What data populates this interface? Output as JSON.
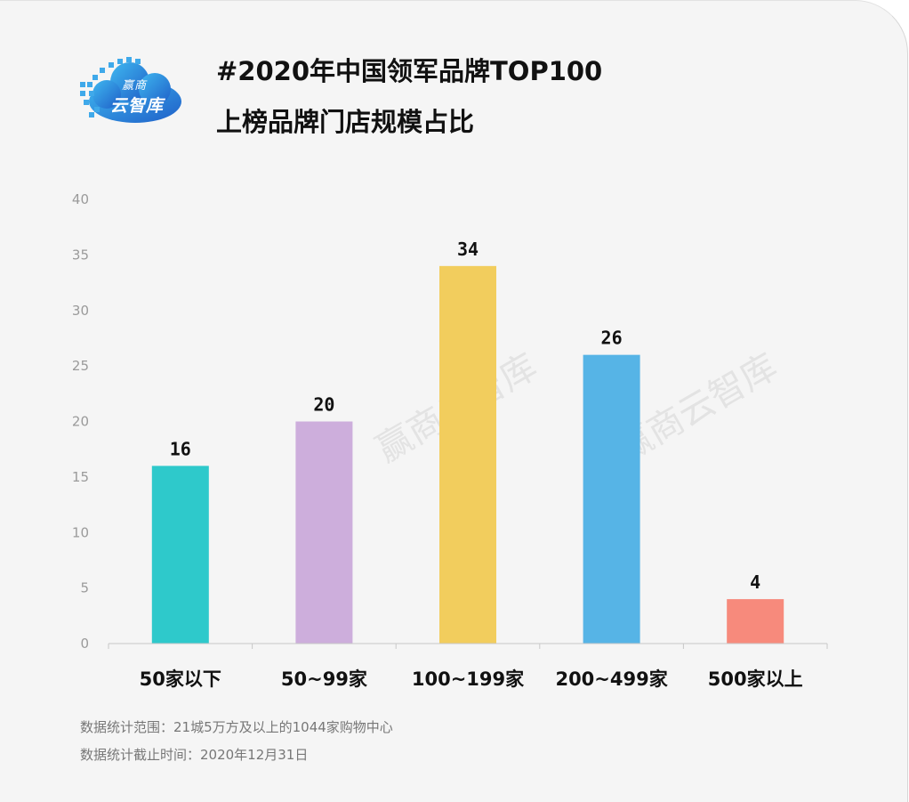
{
  "brand": {
    "logo_text_top": "赢商",
    "logo_text_main": "云智库",
    "watermark": "赢商云智库"
  },
  "title": {
    "line1": "#2020年中国领军品牌TOP100",
    "line2": "上榜品牌门店规模占比"
  },
  "notes": {
    "scope": "数据统计范围：21城5万方及以上的1044家购物中心",
    "cutoff": "数据统计截止时间：2020年12月31日"
  },
  "chart_data": {
    "type": "bar",
    "title": "#2020年中国领军品牌TOP100 上榜品牌门店规模占比",
    "xlabel": "",
    "ylabel": "",
    "categories": [
      "50家以下",
      "50~99家",
      "100~199家",
      "200~499家",
      "500家以上"
    ],
    "values": [
      16,
      20,
      34,
      26,
      4
    ],
    "colors": [
      "#2ec9cb",
      "#cdaedc",
      "#f2cd5d",
      "#56b4e6",
      "#f78a7c"
    ],
    "ylim": [
      0,
      40
    ],
    "yticks": [
      0,
      5,
      10,
      15,
      20,
      25,
      30,
      35,
      40
    ],
    "data_labels": true,
    "grid": false,
    "legend": "none"
  }
}
